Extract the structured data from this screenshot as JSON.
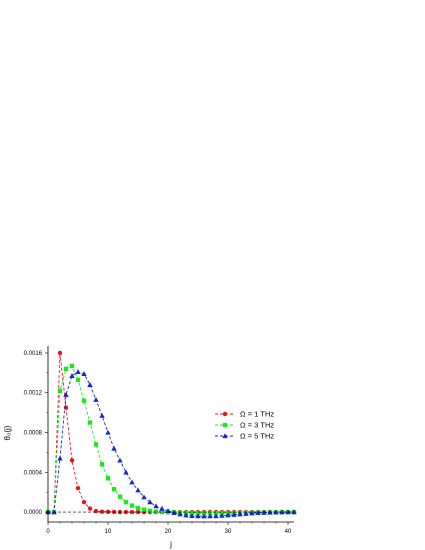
{
  "chart_data": {
    "type": "line",
    "xlabel": "j",
    "ylabel": "θ₀(j)",
    "xlim": [
      0,
      41
    ],
    "ylim": [
      -0.0001,
      0.00165
    ],
    "xticks": [
      "0",
      "10",
      "20",
      "30",
      "40"
    ],
    "yticks": [
      "0.0000",
      "0.0004",
      "0.0008",
      "0.0012",
      "0.0016"
    ],
    "grid": false,
    "legend_position": "right",
    "zero_line": true,
    "series": [
      {
        "name": "Ω = 1 THz",
        "color": "#e8141a",
        "marker": "circle",
        "x": [
          0,
          1,
          2,
          3,
          4,
          5,
          6,
          7,
          8,
          9,
          10,
          11,
          12,
          13,
          14,
          15,
          16,
          17,
          18,
          19,
          20,
          21,
          22,
          23,
          24,
          25,
          26,
          27,
          28,
          29,
          30,
          31,
          32,
          33,
          34,
          35,
          36,
          37,
          38,
          39,
          40,
          41
        ],
        "values": [
          0,
          0,
          0.0016,
          0.00105,
          0.00052,
          0.00024,
          0.0001,
          3.5e-05,
          1e-05,
          4e-06,
          2e-06,
          1e-06,
          0,
          0,
          0,
          0,
          0,
          0,
          0,
          0,
          0,
          0,
          0,
          0,
          0,
          0,
          0,
          0,
          0,
          0,
          0,
          0,
          0,
          0,
          0,
          0,
          0,
          0,
          0,
          0,
          0,
          0
        ]
      },
      {
        "name": "Ω = 3 THz",
        "color": "#1fe61f",
        "marker": "square",
        "x": [
          0,
          1,
          2,
          3,
          4,
          5,
          6,
          7,
          8,
          9,
          10,
          11,
          12,
          13,
          14,
          15,
          16,
          17,
          18,
          19,
          20,
          21,
          22,
          23,
          24,
          25,
          26,
          27,
          28,
          29,
          30,
          31,
          32,
          33,
          34,
          35,
          36,
          37,
          38,
          39,
          40,
          41
        ],
        "values": [
          0,
          0,
          0.00122,
          0.00144,
          0.00147,
          0.00133,
          0.00112,
          0.0009,
          0.00068,
          0.00048,
          0.00034,
          0.00023,
          0.000155,
          0.0001,
          6.5e-05,
          4e-05,
          2.4e-05,
          1.2e-05,
          5e-06,
          1e-06,
          -2e-06,
          -4e-06,
          -6e-06,
          -7e-06,
          -8e-06,
          -9e-06,
          -1e-05,
          -1e-05,
          -1e-05,
          -1e-05,
          -1e-05,
          -1e-05,
          -9e-06,
          -8e-06,
          -7e-06,
          -6e-06,
          -5e-06,
          -4e-06,
          -3e-06,
          -2e-06,
          -2e-06,
          -1e-06
        ]
      },
      {
        "name": "Ω = 5 THz",
        "color": "#1a24d6",
        "marker": "triangle",
        "x": [
          0,
          1,
          2,
          3,
          4,
          5,
          6,
          7,
          8,
          9,
          10,
          11,
          12,
          13,
          14,
          15,
          16,
          17,
          18,
          19,
          20,
          21,
          22,
          23,
          24,
          25,
          26,
          27,
          28,
          29,
          30,
          31,
          32,
          33,
          34,
          35,
          36,
          37,
          38,
          39,
          40,
          41
        ],
        "values": [
          0,
          0,
          0.00054,
          0.00118,
          0.00137,
          0.00141,
          0.00139,
          0.00128,
          0.00113,
          0.00097,
          0.0008,
          0.00064,
          0.00052,
          0.0004,
          0.0003,
          0.00022,
          0.00015,
          0.0001,
          6e-05,
          3.5e-05,
          1.2e-05,
          -8e-06,
          -2.2e-05,
          -3.2e-05,
          -3.8e-05,
          -4.1e-05,
          -4.2e-05,
          -4.1e-05,
          -3.9e-05,
          -3.6e-05,
          -3.2e-05,
          -2.7e-05,
          -2.2e-05,
          -1.7e-05,
          -1.2e-05,
          -8e-06,
          -5e-06,
          -3e-06,
          -1e-06,
          0,
          1e-06,
          1e-06
        ]
      }
    ]
  }
}
